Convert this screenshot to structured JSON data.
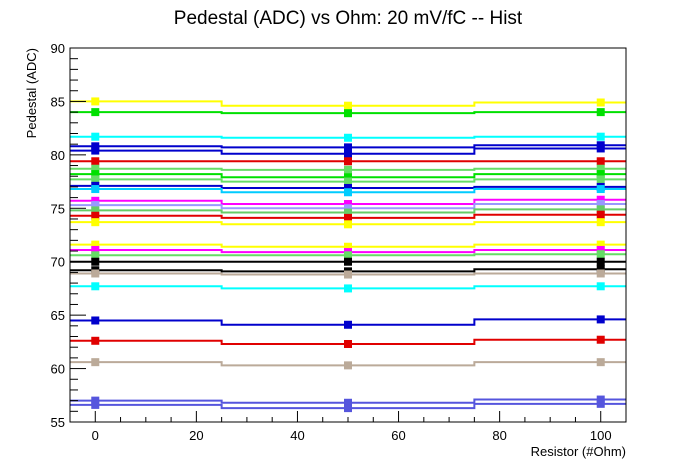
{
  "chart_data": {
    "type": "line",
    "title": "Pedestal (ADC) vs Ohm: 20 mV/fC -- Hist",
    "xlabel": "Resistor (#Ohm)",
    "ylabel": "Pedestal (ADC)",
    "xlim": [
      -5,
      105
    ],
    "ylim": [
      55,
      90
    ],
    "x_ticks": [
      0,
      20,
      40,
      60,
      80,
      100
    ],
    "y_ticks": [
      55,
      60,
      65,
      70,
      75,
      80,
      85,
      90
    ],
    "x": [
      0,
      50,
      100
    ],
    "grid": false,
    "legend": "none",
    "series": [
      {
        "color": "#ffff00",
        "values": [
          85.0,
          84.6,
          84.9
        ]
      },
      {
        "color": "#00e000",
        "values": [
          84.0,
          83.9,
          84.0
        ]
      },
      {
        "color": "#00ffff",
        "values": [
          81.7,
          81.6,
          81.7
        ]
      },
      {
        "color": "#0000cc",
        "values": [
          80.8,
          80.7,
          80.9
        ]
      },
      {
        "color": "#0000cc",
        "values": [
          80.4,
          80.1,
          80.6
        ]
      },
      {
        "color": "#e00000",
        "values": [
          79.4,
          79.4,
          79.4
        ]
      },
      {
        "color": "#66dd66",
        "values": [
          78.7,
          78.6,
          78.7
        ]
      },
      {
        "color": "#00e000",
        "values": [
          78.2,
          77.9,
          78.2
        ]
      },
      {
        "color": "#66dd66",
        "values": [
          77.7,
          77.5,
          77.7
        ]
      },
      {
        "color": "#0000cc",
        "values": [
          77.1,
          76.9,
          77.0
        ]
      },
      {
        "color": "#00ccff",
        "values": [
          76.8,
          76.5,
          76.8
        ]
      },
      {
        "color": "#ff00ff",
        "values": [
          75.7,
          75.4,
          75.8
        ]
      },
      {
        "color": "#9999ff",
        "values": [
          75.3,
          75.0,
          75.4
        ]
      },
      {
        "color": "#66cc66",
        "values": [
          74.8,
          74.6,
          74.9
        ]
      },
      {
        "color": "#e00000",
        "values": [
          74.3,
          74.1,
          74.4
        ]
      },
      {
        "color": "#ffff00",
        "values": [
          73.7,
          73.5,
          73.7
        ]
      },
      {
        "color": "#ffff00",
        "values": [
          71.6,
          71.4,
          71.6
        ]
      },
      {
        "color": "#ff00ff",
        "values": [
          71.1,
          70.9,
          71.1
        ]
      },
      {
        "color": "#66dd66",
        "values": [
          70.6,
          70.6,
          70.7
        ]
      },
      {
        "color": "#000000",
        "values": [
          70.0,
          70.0,
          70.0
        ]
      },
      {
        "color": "#000000",
        "values": [
          69.2,
          69.1,
          69.3
        ]
      },
      {
        "color": "#bbaa99",
        "values": [
          68.9,
          68.8,
          68.9
        ]
      },
      {
        "color": "#00ffff",
        "values": [
          67.7,
          67.5,
          67.7
        ]
      },
      {
        "color": "#0000cc",
        "values": [
          64.5,
          64.1,
          64.6
        ]
      },
      {
        "color": "#e00000",
        "values": [
          62.6,
          62.3,
          62.7
        ]
      },
      {
        "color": "#bbaa99",
        "values": [
          60.6,
          60.3,
          60.6
        ]
      },
      {
        "color": "#5555dd",
        "values": [
          57.0,
          56.8,
          57.1
        ]
      },
      {
        "color": "#5555dd",
        "values": [
          56.6,
          56.3,
          56.7
        ]
      }
    ]
  }
}
